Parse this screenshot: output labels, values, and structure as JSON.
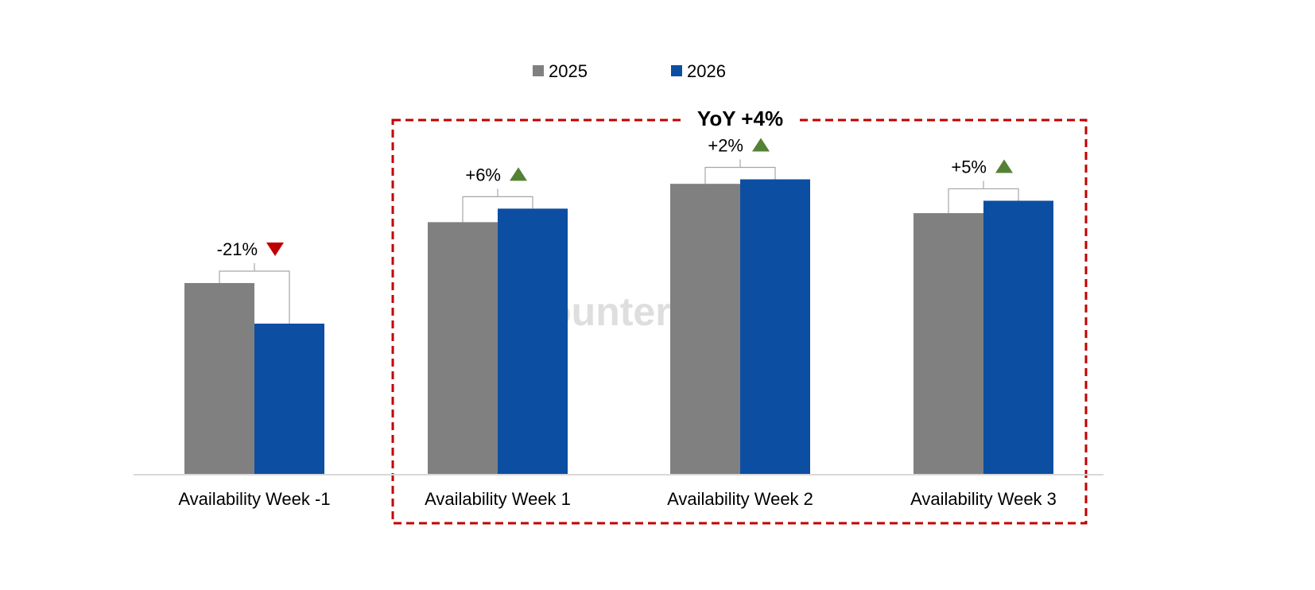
{
  "chart_data": {
    "type": "bar",
    "categories": [
      "Availability Week -1",
      "Availability Week 1",
      "Availability Week 2",
      "Availability Week 3"
    ],
    "series": [
      {
        "name": "2025",
        "color": "#808080",
        "values": [
          85,
          112,
          129,
          116
        ]
      },
      {
        "name": "2026",
        "color": "#0C4EA2",
        "values": [
          67,
          118,
          131,
          121.5
        ]
      }
    ],
    "changes": [
      {
        "label": "-21%",
        "direction": "down"
      },
      {
        "label": "+6%",
        "direction": "up"
      },
      {
        "label": "+2%",
        "direction": "up"
      },
      {
        "label": "+5%",
        "direction": "up"
      }
    ],
    "highlight": {
      "label": "YoY +4%",
      "from_category": 1,
      "to_category": 3,
      "color": "#C00000"
    },
    "up_color": "#548235",
    "down_color": "#C00000",
    "ylim": [
      0,
      150
    ],
    "grid": false,
    "legend_position": "top",
    "watermark": "Counterpoint"
  }
}
